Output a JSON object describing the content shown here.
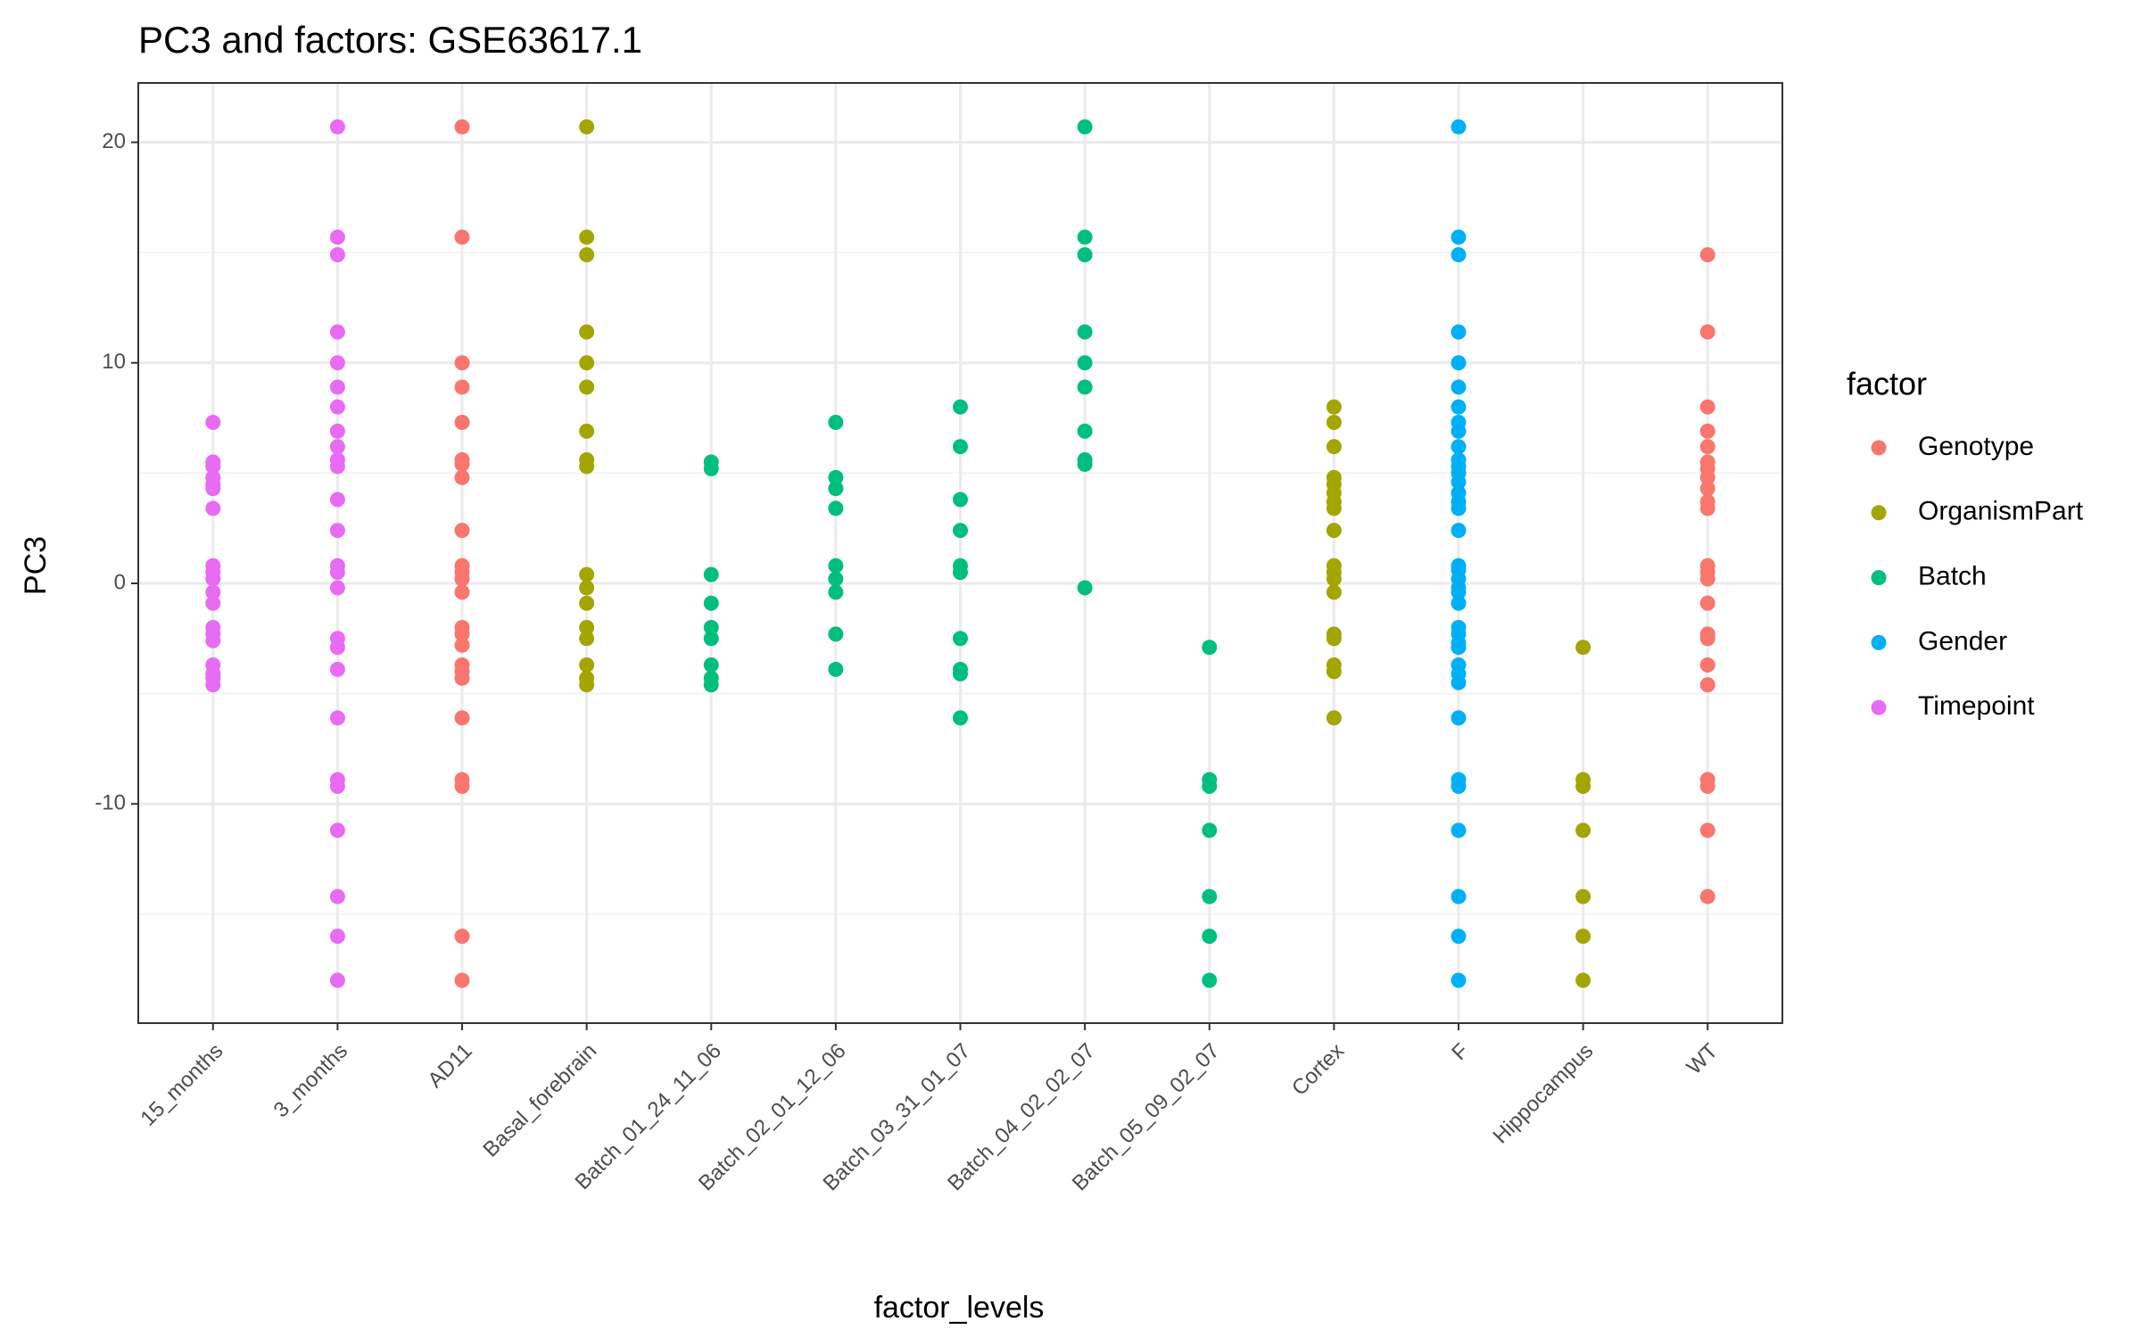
{
  "chart_data": {
    "type": "strip",
    "title": "PC3 and factors: GSE63617.1",
    "x_label": "factor_levels",
    "y_label": "PC3",
    "categories": [
      "15_months",
      "3_months",
      "AD11",
      "Basal_forebrain",
      "Batch_01_24_11_06",
      "Batch_02_01_12_06",
      "Batch_03_31_01_07",
      "Batch_04_02_02_07",
      "Batch_05_09_02_07",
      "Cortex",
      "F",
      "Hippocampus",
      "WT"
    ],
    "ylim": [
      -19.94,
      22.69
    ],
    "yticks": [
      -10,
      0,
      10,
      20
    ],
    "grid": true,
    "legend_title": "factor",
    "legend_position": "right",
    "series": [
      {
        "name": "Genotype",
        "color": "#F8766D",
        "x": [
          "AD11",
          "AD11",
          "AD11",
          "AD11",
          "AD11",
          "AD11",
          "AD11",
          "AD11",
          "AD11",
          "AD11",
          "AD11",
          "AD11",
          "AD11",
          "AD11",
          "AD11",
          "AD11",
          "AD11",
          "AD11",
          "AD11",
          "AD11",
          "AD11",
          "AD11",
          "AD11",
          "AD11",
          "WT",
          "WT",
          "WT",
          "WT",
          "WT",
          "WT",
          "WT",
          "WT",
          "WT",
          "WT",
          "WT",
          "WT",
          "WT",
          "WT",
          "WT",
          "WT",
          "WT",
          "WT",
          "WT",
          "WT",
          "WT",
          "WT",
          "WT"
        ],
        "values": [
          20.7,
          15.7,
          10,
          8.9,
          7.3,
          5.6,
          5.4,
          4.8,
          2.4,
          0.8,
          0.5,
          0.2,
          -0.4,
          -2,
          -2.3,
          -2.8,
          -3.7,
          -4,
          -4.3,
          -6.1,
          -8.9,
          -9.2,
          -16,
          -18,
          14.9,
          11.4,
          8,
          6.9,
          6.2,
          5.5,
          5.2,
          4.8,
          4.3,
          3.7,
          3.4,
          0.8,
          0.5,
          0.2,
          -0.9,
          -2.3,
          -2.5,
          -3.7,
          -4.6,
          -8.9,
          -9.2,
          -11.2,
          -14.2
        ]
      },
      {
        "name": "OrganismPart",
        "color": "#A3A500",
        "x": [
          "Basal_forebrain",
          "Basal_forebrain",
          "Basal_forebrain",
          "Basal_forebrain",
          "Basal_forebrain",
          "Basal_forebrain",
          "Basal_forebrain",
          "Basal_forebrain",
          "Basal_forebrain",
          "Basal_forebrain",
          "Basal_forebrain",
          "Basal_forebrain",
          "Basal_forebrain",
          "Basal_forebrain",
          "Basal_forebrain",
          "Basal_forebrain",
          "Basal_forebrain",
          "Cortex",
          "Cortex",
          "Cortex",
          "Cortex",
          "Cortex",
          "Cortex",
          "Cortex",
          "Cortex",
          "Cortex",
          "Cortex",
          "Cortex",
          "Cortex",
          "Cortex",
          "Cortex",
          "Cortex",
          "Cortex",
          "Cortex",
          "Cortex",
          "Hippocampus",
          "Hippocampus",
          "Hippocampus",
          "Hippocampus",
          "Hippocampus",
          "Hippocampus",
          "Hippocampus"
        ],
        "values": [
          20.7,
          15.7,
          14.9,
          11.4,
          10,
          8.9,
          6.9,
          5.6,
          5.3,
          0.4,
          -0.2,
          -0.9,
          -2,
          -2.5,
          -3.7,
          -4.3,
          -4.6,
          8,
          7.3,
          6.2,
          4.8,
          4.5,
          4.1,
          3.7,
          3.4,
          2.4,
          0.8,
          0.5,
          0.2,
          -0.4,
          -2.3,
          -2.5,
          -3.7,
          -4,
          -6.1,
          -2.9,
          -8.9,
          -9.2,
          -11.2,
          -14.2,
          -16,
          -18
        ]
      },
      {
        "name": "Batch",
        "color": "#00BF7D",
        "x": [
          "Batch_01_24_11_06",
          "Batch_01_24_11_06",
          "Batch_01_24_11_06",
          "Batch_01_24_11_06",
          "Batch_01_24_11_06",
          "Batch_01_24_11_06",
          "Batch_01_24_11_06",
          "Batch_01_24_11_06",
          "Batch_01_24_11_06",
          "Batch_02_01_12_06",
          "Batch_02_01_12_06",
          "Batch_02_01_12_06",
          "Batch_02_01_12_06",
          "Batch_02_01_12_06",
          "Batch_02_01_12_06",
          "Batch_02_01_12_06",
          "Batch_02_01_12_06",
          "Batch_02_01_12_06",
          "Batch_03_31_01_07",
          "Batch_03_31_01_07",
          "Batch_03_31_01_07",
          "Batch_03_31_01_07",
          "Batch_03_31_01_07",
          "Batch_03_31_01_07",
          "Batch_03_31_01_07",
          "Batch_03_31_01_07",
          "Batch_03_31_01_07",
          "Batch_03_31_01_07",
          "Batch_04_02_02_07",
          "Batch_04_02_02_07",
          "Batch_04_02_02_07",
          "Batch_04_02_02_07",
          "Batch_04_02_02_07",
          "Batch_04_02_02_07",
          "Batch_04_02_02_07",
          "Batch_04_02_02_07",
          "Batch_04_02_02_07",
          "Batch_04_02_02_07",
          "Batch_05_09_02_07",
          "Batch_05_09_02_07",
          "Batch_05_09_02_07",
          "Batch_05_09_02_07",
          "Batch_05_09_02_07",
          "Batch_05_09_02_07",
          "Batch_05_09_02_07"
        ],
        "values": [
          5.5,
          5.2,
          0.4,
          -0.9,
          -2,
          -2.5,
          -3.7,
          -4.3,
          -4.6,
          7.3,
          4.8,
          4.3,
          3.4,
          0.8,
          0.2,
          -0.4,
          -2.3,
          -3.9,
          8,
          6.2,
          3.8,
          2.4,
          0.8,
          0.5,
          -2.5,
          -3.9,
          -4.1,
          -6.1,
          20.7,
          15.7,
          14.9,
          11.4,
          10,
          8.9,
          6.9,
          5.6,
          5.4,
          -0.2,
          -2.9,
          -8.9,
          -9.2,
          -11.2,
          -14.2,
          -16,
          -18
        ]
      },
      {
        "name": "Gender",
        "color": "#00B0F6",
        "x": [
          "F",
          "F",
          "F",
          "F",
          "F",
          "F",
          "F",
          "F",
          "F",
          "F",
          "F",
          "F",
          "F",
          "F",
          "F",
          "F",
          "F",
          "F",
          "F",
          "F",
          "F",
          "F",
          "F",
          "F",
          "F",
          "F",
          "F",
          "F",
          "F",
          "F",
          "F",
          "F",
          "F",
          "F",
          "F",
          "F",
          "F",
          "F"
        ],
        "values": [
          20.7,
          15.7,
          14.9,
          11.4,
          10,
          8.9,
          8,
          7.3,
          6.9,
          6.2,
          5.6,
          5.3,
          5,
          4.6,
          4.1,
          3.7,
          3.4,
          2.4,
          0.8,
          0.6,
          0.2,
          -0.2,
          -0.4,
          -0.9,
          -2,
          -2.3,
          -2.7,
          -2.9,
          -3.7,
          -4.1,
          -4.5,
          -6.1,
          -8.9,
          -9.2,
          -11.2,
          -14.2,
          -16,
          -18
        ]
      },
      {
        "name": "Timepoint",
        "color": "#E76BF3",
        "x": [
          "15_months",
          "15_months",
          "15_months",
          "15_months",
          "15_months",
          "15_months",
          "15_months",
          "15_months",
          "15_months",
          "15_months",
          "15_months",
          "15_months",
          "15_months",
          "15_months",
          "15_months",
          "15_months",
          "15_months",
          "15_months",
          "15_months",
          "3_months",
          "3_months",
          "3_months",
          "3_months",
          "3_months",
          "3_months",
          "3_months",
          "3_months",
          "3_months",
          "3_months",
          "3_months",
          "3_months",
          "3_months",
          "3_months",
          "3_months",
          "3_months",
          "3_months",
          "3_months",
          "3_months",
          "3_months",
          "3_months",
          "3_months",
          "3_months",
          "3_months",
          "3_months",
          "3_months"
        ],
        "values": [
          7.3,
          5.5,
          5.3,
          4.8,
          4.5,
          4.3,
          3.4,
          0.8,
          0.5,
          0.2,
          -0.4,
          -0.9,
          -2,
          -2.3,
          -2.6,
          -3.7,
          -4.1,
          -4.3,
          -4.6,
          20.7,
          15.7,
          14.9,
          11.4,
          10,
          8.9,
          8,
          6.9,
          6.2,
          5.6,
          5.3,
          3.8,
          2.4,
          0.8,
          0.5,
          -0.2,
          -2.5,
          -2.9,
          -3.9,
          -6.1,
          -8.9,
          -9.2,
          -11.2,
          -14.2,
          -16,
          -18
        ]
      }
    ]
  }
}
